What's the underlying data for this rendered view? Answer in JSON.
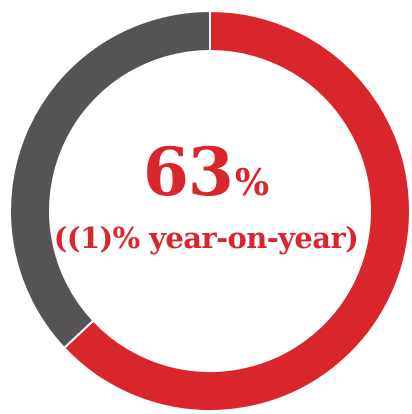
{
  "chart_data": {
    "type": "pie",
    "donut": true,
    "categories": [
      "",
      ""
    ],
    "values": [
      63,
      37
    ],
    "series": [
      {
        "name": "",
        "values": [
          63,
          37
        ]
      }
    ],
    "colors": [
      "#d9262c",
      "#555356"
    ],
    "start_angle_deg": 0,
    "direction": "clockwise",
    "center_value": "63",
    "center_unit": "%",
    "center_change": "((1)% year-on-year)",
    "title": "",
    "legend": "none"
  }
}
